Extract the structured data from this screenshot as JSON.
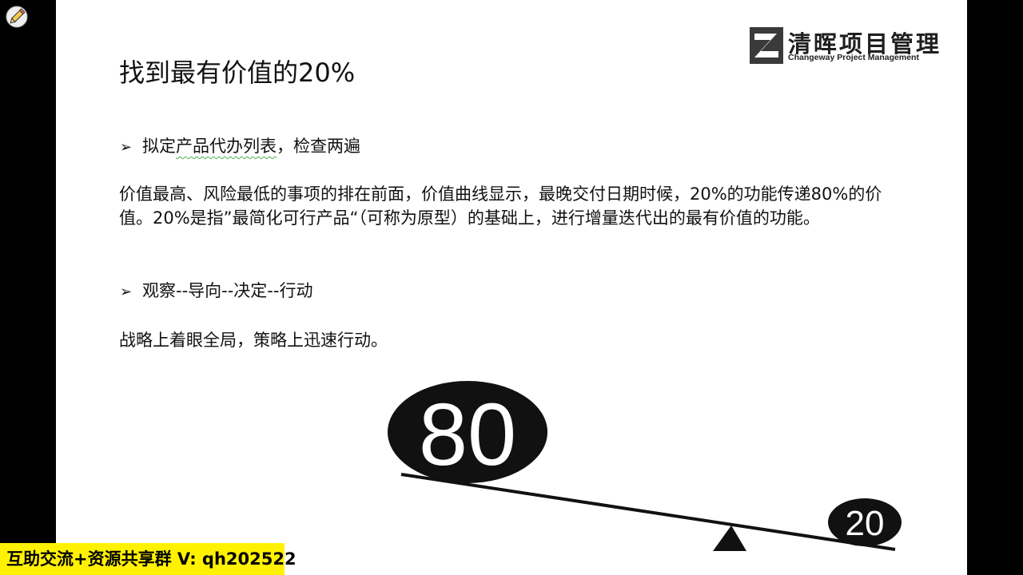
{
  "slide": {
    "title": "找到最有价值的20%",
    "logo": {
      "cn": "清晖项目管理",
      "en": "Changeway Project Management"
    },
    "bullet1": {
      "marker": "➢",
      "text_pre": "拟定",
      "text_underlined": "产品代办列表",
      "text_post": "，检查两遍"
    },
    "paragraph1": "价值最高、风险最低的事项的排在前面，价值曲线显示，最晚交付日期时候，20%的功能传递80%的价值。20%是指”最简化可行产品“（可称为原型）的基础上，进行增量迭代出的最有价值的功能。",
    "bullet2": {
      "marker": "➢",
      "text": "观察--导向--决定--行动"
    },
    "paragraph2": "战略上着眼全局，策略上迅速行动。",
    "seesaw": {
      "left_value": "80",
      "right_value": "20"
    }
  },
  "banner": {
    "text": "互助交流+资源共享群 V: qh202522"
  },
  "colors": {
    "slide_bg": "#ffffff",
    "frame_bg": "#000000",
    "banner_bg": "#fff200",
    "underline": "#4caf50"
  }
}
